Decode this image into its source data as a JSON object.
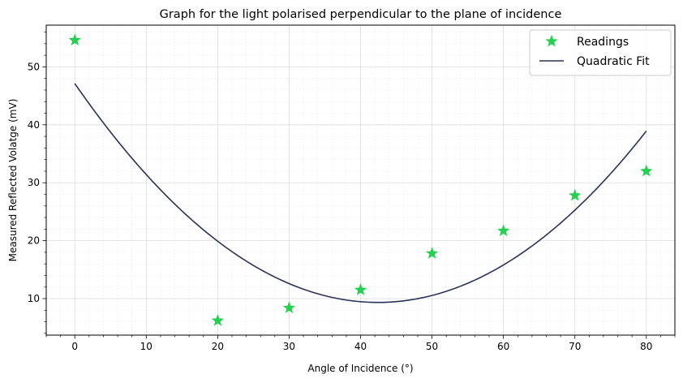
{
  "chart_data": {
    "type": "scatter",
    "title": "Graph for the light polarised perpendicular to the plane of incidence",
    "xlabel": "Angle of Incidence (°)",
    "ylabel": "Measured Reflected Volatge (mV)",
    "xlim": [
      -4,
      84
    ],
    "ylim": [
      3.7,
      57.2
    ],
    "xticks": [
      0,
      10,
      20,
      30,
      40,
      50,
      60,
      70,
      80
    ],
    "yticks": [
      10,
      20,
      30,
      40,
      50
    ],
    "grid": true,
    "minor_grid": true,
    "legend_position": "top-right",
    "series": [
      {
        "name": "Readings",
        "kind": "scatter",
        "marker": "star",
        "color": "#22d150",
        "x": [
          0,
          20,
          30,
          40,
          50,
          60,
          70,
          80
        ],
        "y": [
          54.6,
          6.2,
          8.4,
          11.5,
          17.8,
          21.7,
          27.8,
          32.0
        ]
      },
      {
        "name": "Quadratic Fit",
        "kind": "line",
        "color": "#283358",
        "x": [
          0,
          10,
          20,
          30,
          40,
          42.4,
          50,
          60,
          70,
          80
        ],
        "y": [
          47.1,
          31.5,
          19.8,
          12.6,
          9.5,
          9.4,
          10.6,
          15.6,
          25.4,
          38.9
        ]
      }
    ]
  }
}
